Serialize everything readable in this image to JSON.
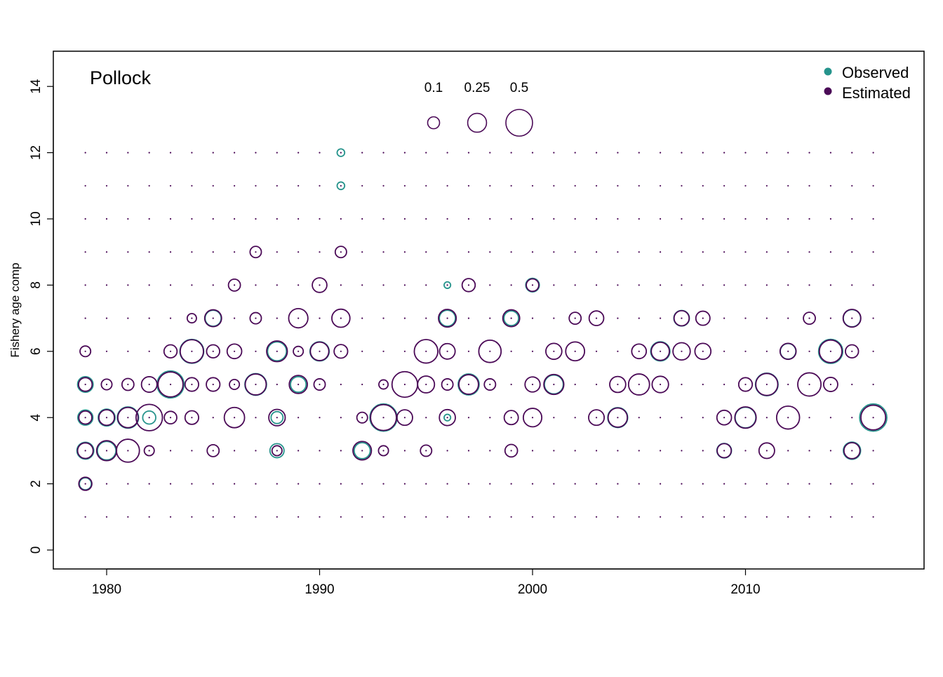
{
  "chart_data": {
    "type": "scatter",
    "subtype": "bubble",
    "title": "Pollock",
    "ylabel": "Fishery age comp",
    "xlabel": "",
    "xlim": [
      1977.5,
      2018.5
    ],
    "ylim": [
      -0.7,
      15
    ],
    "x_ticks": [
      "1980",
      "1990",
      "2000",
      "2010"
    ],
    "y_ticks": [
      "0",
      "2",
      "4",
      "6",
      "8",
      "10",
      "12",
      "14"
    ],
    "grid": false,
    "legend_position": "top-right",
    "size_legend": {
      "labels": [
        "0.1",
        "0.25",
        "0.5"
      ],
      "values": [
        0.1,
        0.25,
        0.5
      ]
    },
    "colors": {
      "observed": "#26948c",
      "estimated": "#4b0a57"
    },
    "series": [
      {
        "name": "Observed",
        "color": "#26948c",
        "points": [
          [
            1979,
            3,
            0.2
          ],
          [
            1979,
            4,
            0.16
          ],
          [
            1979,
            5,
            0.17
          ],
          [
            1979,
            2,
            0.1
          ],
          [
            1980,
            3,
            0.24
          ],
          [
            1980,
            4,
            0.2
          ],
          [
            1981,
            4,
            0.32
          ],
          [
            1982,
            4,
            0.12
          ],
          [
            1983,
            5,
            0.51
          ],
          [
            1984,
            6,
            0.4
          ],
          [
            1985,
            7,
            0.18
          ],
          [
            1987,
            5,
            0.33
          ],
          [
            1988,
            6,
            0.25
          ],
          [
            1988,
            3,
            0.14
          ],
          [
            1988,
            4,
            0.1
          ],
          [
            1989,
            5,
            0.17
          ],
          [
            1990,
            6,
            0.26
          ],
          [
            1993,
            4,
            0.52
          ],
          [
            1992,
            3,
            0.18
          ],
          [
            1996,
            7,
            0.18
          ],
          [
            1996,
            4,
            0.03
          ],
          [
            1996,
            8,
            0.03
          ],
          [
            1997,
            5,
            0.31
          ],
          [
            1999,
            7,
            0.15
          ],
          [
            2000,
            8,
            0.13
          ],
          [
            2001,
            5,
            0.25
          ],
          [
            2004,
            4,
            0.28
          ],
          [
            2006,
            6,
            0.26
          ],
          [
            2007,
            7,
            0.17
          ],
          [
            2011,
            5,
            0.36
          ],
          [
            2012,
            6,
            0.17
          ],
          [
            2014,
            6,
            0.41
          ],
          [
            2015,
            7,
            0.21
          ],
          [
            2015,
            3,
            0.21
          ],
          [
            2016,
            4,
            0.52
          ],
          [
            2009,
            3,
            0.15
          ],
          [
            2010,
            4,
            0.3
          ],
          [
            1991,
            11,
            0.04
          ],
          [
            1991,
            12,
            0.04
          ]
        ]
      },
      {
        "name": "Estimated",
        "color": "#4b0a57",
        "points": [
          [
            1979,
            3,
            0.17
          ],
          [
            1979,
            4,
            0.12
          ],
          [
            1979,
            5,
            0.13
          ],
          [
            1979,
            6,
            0.08
          ],
          [
            1979,
            2,
            0.12
          ],
          [
            1980,
            3,
            0.28
          ],
          [
            1980,
            4,
            0.17
          ],
          [
            1980,
            5,
            0.08
          ],
          [
            1981,
            3,
            0.37
          ],
          [
            1981,
            4,
            0.29
          ],
          [
            1981,
            5,
            0.1
          ],
          [
            1982,
            4,
            0.49
          ],
          [
            1982,
            5,
            0.17
          ],
          [
            1982,
            3,
            0.07
          ],
          [
            1983,
            5,
            0.44
          ],
          [
            1983,
            6,
            0.12
          ],
          [
            1983,
            4,
            0.11
          ],
          [
            1984,
            6,
            0.38
          ],
          [
            1984,
            5,
            0.13
          ],
          [
            1984,
            4,
            0.13
          ],
          [
            1984,
            7,
            0.06
          ],
          [
            1985,
            7,
            0.2
          ],
          [
            1985,
            6,
            0.12
          ],
          [
            1985,
            5,
            0.13
          ],
          [
            1985,
            3,
            0.1
          ],
          [
            1986,
            4,
            0.29
          ],
          [
            1986,
            6,
            0.15
          ],
          [
            1986,
            8,
            0.1
          ],
          [
            1986,
            5,
            0.07
          ],
          [
            1987,
            5,
            0.31
          ],
          [
            1987,
            9,
            0.09
          ],
          [
            1987,
            7,
            0.09
          ],
          [
            1988,
            6,
            0.3
          ],
          [
            1988,
            4,
            0.19
          ],
          [
            1988,
            3,
            0.07
          ],
          [
            1989,
            7,
            0.26
          ],
          [
            1989,
            5,
            0.23
          ],
          [
            1989,
            6,
            0.07
          ],
          [
            1990,
            6,
            0.24
          ],
          [
            1990,
            8,
            0.15
          ],
          [
            1990,
            5,
            0.09
          ],
          [
            1991,
            7,
            0.23
          ],
          [
            1991,
            6,
            0.13
          ],
          [
            1991,
            9,
            0.09
          ],
          [
            1992,
            3,
            0.24
          ],
          [
            1992,
            4,
            0.08
          ],
          [
            1993,
            4,
            0.47
          ],
          [
            1993,
            5,
            0.06
          ],
          [
            1993,
            3,
            0.07
          ],
          [
            1994,
            5,
            0.46
          ],
          [
            1994,
            4,
            0.17
          ],
          [
            1995,
            6,
            0.39
          ],
          [
            1995,
            5,
            0.2
          ],
          [
            1995,
            3,
            0.09
          ],
          [
            1996,
            7,
            0.22
          ],
          [
            1996,
            6,
            0.17
          ],
          [
            1996,
            5,
            0.09
          ],
          [
            1996,
            4,
            0.18
          ],
          [
            1997,
            5,
            0.27
          ],
          [
            1997,
            8,
            0.12
          ],
          [
            1998,
            6,
            0.35
          ],
          [
            1998,
            5,
            0.09
          ],
          [
            1999,
            7,
            0.2
          ],
          [
            1999,
            4,
            0.14
          ],
          [
            1999,
            3,
            0.11
          ],
          [
            2000,
            5,
            0.16
          ],
          [
            2000,
            4,
            0.24
          ],
          [
            2000,
            8,
            0.11
          ],
          [
            2001,
            5,
            0.28
          ],
          [
            2001,
            6,
            0.18
          ],
          [
            2002,
            6,
            0.25
          ],
          [
            2002,
            7,
            0.1
          ],
          [
            2003,
            7,
            0.15
          ],
          [
            2003,
            4,
            0.17
          ],
          [
            2004,
            4,
            0.26
          ],
          [
            2004,
            5,
            0.18
          ],
          [
            2005,
            5,
            0.31
          ],
          [
            2005,
            6,
            0.15
          ],
          [
            2006,
            6,
            0.23
          ],
          [
            2006,
            5,
            0.19
          ],
          [
            2007,
            6,
            0.21
          ],
          [
            2007,
            7,
            0.16
          ],
          [
            2008,
            6,
            0.18
          ],
          [
            2008,
            7,
            0.14
          ],
          [
            2009,
            3,
            0.14
          ],
          [
            2009,
            4,
            0.15
          ],
          [
            2010,
            4,
            0.32
          ],
          [
            2010,
            5,
            0.13
          ],
          [
            2011,
            5,
            0.34
          ],
          [
            2011,
            3,
            0.17
          ],
          [
            2012,
            4,
            0.37
          ],
          [
            2012,
            6,
            0.18
          ],
          [
            2013,
            5,
            0.38
          ],
          [
            2013,
            7,
            0.1
          ],
          [
            2014,
            6,
            0.36
          ],
          [
            2014,
            5,
            0.14
          ],
          [
            2015,
            7,
            0.22
          ],
          [
            2015,
            3,
            0.18
          ],
          [
            2015,
            6,
            0.12
          ],
          [
            2016,
            4,
            0.43
          ]
        ]
      }
    ]
  }
}
